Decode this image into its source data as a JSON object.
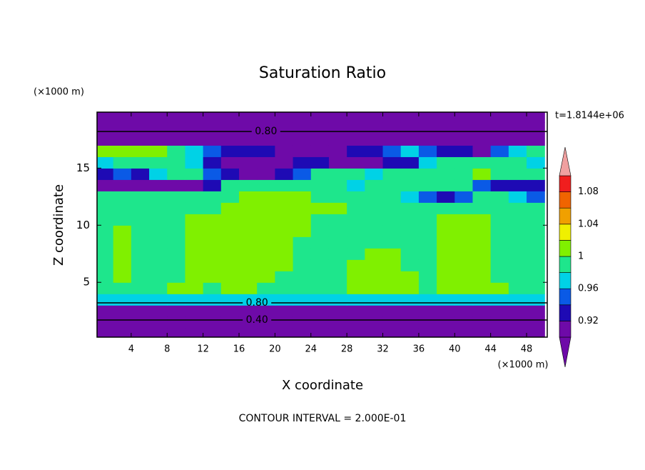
{
  "chart_data": {
    "type": "contour",
    "title": "Saturation Ratio",
    "x_label": "X coordinate",
    "y_label": "Z coordinate",
    "x_unit": "(×1000 m)",
    "y_unit": "(×1000 m)",
    "time_label": "t=1.8144e+06",
    "footnote": "CONTOUR INTERVAL = 2.000E-01",
    "xlim": [
      0.2,
      50.3
    ],
    "ylim": [
      0.2,
      19.9
    ],
    "xticks": [
      4,
      8,
      12,
      16,
      20,
      24,
      28,
      32,
      36,
      40,
      44,
      48
    ],
    "yticks": [
      5,
      10,
      15
    ],
    "x": [
      1,
      3,
      5,
      7,
      9,
      11,
      13,
      15,
      17,
      19,
      21,
      23,
      25,
      27,
      29,
      31,
      33,
      35,
      37,
      39,
      41,
      43,
      45,
      47,
      49
    ],
    "y": [
      0.5,
      1.5,
      2.5,
      3.5,
      4.5,
      5.5,
      6.5,
      7.5,
      8.5,
      9.5,
      10.5,
      11.5,
      12.5,
      13.5,
      14.5,
      15.5,
      16.5,
      17.5,
      18.5,
      19.5
    ],
    "z": [
      [
        0.35,
        0.35,
        0.35,
        0.35,
        0.35,
        0.35,
        0.35,
        0.35,
        0.35,
        0.35,
        0.35,
        0.35,
        0.35,
        0.35,
        0.35,
        0.35,
        0.35,
        0.35,
        0.35,
        0.35,
        0.35,
        0.35,
        0.35,
        0.35,
        0.35
      ],
      [
        0.5,
        0.5,
        0.5,
        0.5,
        0.5,
        0.5,
        0.5,
        0.5,
        0.5,
        0.5,
        0.5,
        0.5,
        0.5,
        0.5,
        0.5,
        0.5,
        0.5,
        0.5,
        0.5,
        0.5,
        0.5,
        0.5,
        0.5,
        0.5,
        0.5
      ],
      [
        0.7,
        0.7,
        0.7,
        0.7,
        0.7,
        0.7,
        0.7,
        0.7,
        0.7,
        0.7,
        0.7,
        0.7,
        0.7,
        0.7,
        0.7,
        0.7,
        0.7,
        0.7,
        0.7,
        0.7,
        0.7,
        0.7,
        0.7,
        0.7,
        0.7
      ],
      [
        0.97,
        0.97,
        0.97,
        0.97,
        0.97,
        0.97,
        0.97,
        0.97,
        0.97,
        0.97,
        0.97,
        0.97,
        0.97,
        0.97,
        0.97,
        0.97,
        0.97,
        0.97,
        0.97,
        0.97,
        0.97,
        0.97,
        0.97,
        0.97,
        0.97
      ],
      [
        0.99,
        0.99,
        0.99,
        0.99,
        1.01,
        1.01,
        0.99,
        1.01,
        1.01,
        0.99,
        0.99,
        0.99,
        0.99,
        0.99,
        1.01,
        1.01,
        1.01,
        1.01,
        0.99,
        1.01,
        1.01,
        1.01,
        1.01,
        0.99,
        0.99
      ],
      [
        0.99,
        1.01,
        0.99,
        0.99,
        0.99,
        1.01,
        1.01,
        1.01,
        1.01,
        1.01,
        0.99,
        0.99,
        0.99,
        0.99,
        1.01,
        1.01,
        1.01,
        1.01,
        0.99,
        1.01,
        1.01,
        1.01,
        0.99,
        0.99,
        0.99
      ],
      [
        0.99,
        1.01,
        0.99,
        0.99,
        0.99,
        1.01,
        1.01,
        1.01,
        1.01,
        1.01,
        1.01,
        0.99,
        0.99,
        0.99,
        1.01,
        1.01,
        1.01,
        0.99,
        0.99,
        1.01,
        1.01,
        1.01,
        0.99,
        0.99,
        0.99
      ],
      [
        0.99,
        1.01,
        0.99,
        0.99,
        0.99,
        1.01,
        1.01,
        1.01,
        1.01,
        1.01,
        1.01,
        0.99,
        0.99,
        0.99,
        0.99,
        1.01,
        1.01,
        0.99,
        0.99,
        1.01,
        1.01,
        1.01,
        0.99,
        0.99,
        0.99
      ],
      [
        0.99,
        1.01,
        0.99,
        0.99,
        0.99,
        1.01,
        1.01,
        1.01,
        1.01,
        1.01,
        1.01,
        0.99,
        0.99,
        0.99,
        0.99,
        0.99,
        0.99,
        0.99,
        0.99,
        1.01,
        1.01,
        1.01,
        0.99,
        0.99,
        0.99
      ],
      [
        0.99,
        1.01,
        0.99,
        0.99,
        0.99,
        1.01,
        1.01,
        1.01,
        1.01,
        1.01,
        1.01,
        1.01,
        0.99,
        0.99,
        0.99,
        0.99,
        0.99,
        0.99,
        0.99,
        1.01,
        1.01,
        1.01,
        0.99,
        0.99,
        0.99
      ],
      [
        0.99,
        0.99,
        0.99,
        0.99,
        0.99,
        1.01,
        1.01,
        1.01,
        1.01,
        1.01,
        1.01,
        1.01,
        0.99,
        0.99,
        0.99,
        0.99,
        0.99,
        0.99,
        0.99,
        1.01,
        1.01,
        1.01,
        0.99,
        0.99,
        0.99
      ],
      [
        0.99,
        0.99,
        0.99,
        0.99,
        0.99,
        0.99,
        0.99,
        1.01,
        1.01,
        1.01,
        1.01,
        1.01,
        1.01,
        1.01,
        0.99,
        0.99,
        0.99,
        0.99,
        0.99,
        0.99,
        0.99,
        0.99,
        0.99,
        0.99,
        0.99
      ],
      [
        0.99,
        0.99,
        0.99,
        0.99,
        0.99,
        0.99,
        0.99,
        0.99,
        1.01,
        1.01,
        1.01,
        1.01,
        0.99,
        0.99,
        0.99,
        0.99,
        0.99,
        0.97,
        0.95,
        0.93,
        0.95,
        0.99,
        0.99,
        0.97,
        0.95
      ],
      [
        0.91,
        0.91,
        0.91,
        0.91,
        0.91,
        0.91,
        0.93,
        0.99,
        0.99,
        0.99,
        0.99,
        0.99,
        0.99,
        0.99,
        0.97,
        0.99,
        0.99,
        0.99,
        0.99,
        0.99,
        0.99,
        0.95,
        0.93,
        0.93,
        0.93
      ],
      [
        0.93,
        0.95,
        0.93,
        0.97,
        0.99,
        0.99,
        0.95,
        0.93,
        0.91,
        0.91,
        0.93,
        0.95,
        0.99,
        0.99,
        0.99,
        0.97,
        0.99,
        0.99,
        0.99,
        0.99,
        0.99,
        1.01,
        0.99,
        0.99,
        0.99
      ],
      [
        0.97,
        0.99,
        0.99,
        0.99,
        0.99,
        0.97,
        0.93,
        0.91,
        0.91,
        0.91,
        0.91,
        0.93,
        0.93,
        0.91,
        0.91,
        0.91,
        0.93,
        0.93,
        0.97,
        0.99,
        0.99,
        0.99,
        0.99,
        0.99,
        0.97
      ],
      [
        1.01,
        1.01,
        1.01,
        1.01,
        0.99,
        0.97,
        0.95,
        0.93,
        0.93,
        0.93,
        0.91,
        0.91,
        0.91,
        0.91,
        0.93,
        0.93,
        0.95,
        0.97,
        0.95,
        0.93,
        0.93,
        0.91,
        0.95,
        0.97,
        0.99
      ],
      [
        0.88,
        0.88,
        0.88,
        0.88,
        0.88,
        0.88,
        0.88,
        0.88,
        0.88,
        0.88,
        0.88,
        0.88,
        0.88,
        0.88,
        0.88,
        0.88,
        0.88,
        0.88,
        0.88,
        0.88,
        0.88,
        0.88,
        0.88,
        0.88,
        0.88
      ],
      [
        0.8,
        0.8,
        0.8,
        0.8,
        0.8,
        0.8,
        0.8,
        0.8,
        0.8,
        0.8,
        0.8,
        0.8,
        0.8,
        0.8,
        0.8,
        0.8,
        0.8,
        0.8,
        0.8,
        0.8,
        0.8,
        0.8,
        0.8,
        0.8,
        0.8
      ],
      [
        0.75,
        0.75,
        0.75,
        0.75,
        0.75,
        0.75,
        0.75,
        0.75,
        0.75,
        0.75,
        0.75,
        0.75,
        0.75,
        0.75,
        0.75,
        0.75,
        0.75,
        0.75,
        0.75,
        0.75,
        0.75,
        0.75,
        0.75,
        0.75,
        0.75
      ]
    ],
    "levels": [
      0.9,
      0.92,
      0.94,
      0.96,
      0.98,
      1,
      1.02,
      1.04,
      1.06,
      1.08,
      1.1
    ],
    "colors": [
      "#6e0aa8",
      "#6e0aa8",
      "#1e0ab4",
      "#0a5ae6",
      "#00d2e6",
      "#1ee68c",
      "#80f000",
      "#f0f000",
      "#f0a000",
      "#f06400",
      "#f01e1e",
      "#f0a0a0"
    ],
    "colorbar_labels": [
      0.92,
      0.96,
      1,
      1.04,
      1.08
    ],
    "contour_lines": [
      {
        "value": 0.8,
        "label": "0.80",
        "x": 19,
        "y": 18.2
      },
      {
        "value": 0.8,
        "label": "0.80",
        "x": 18,
        "y": 3.2
      },
      {
        "value": 0.4,
        "label": "0.40",
        "x": 18,
        "y": 1.7
      }
    ]
  }
}
